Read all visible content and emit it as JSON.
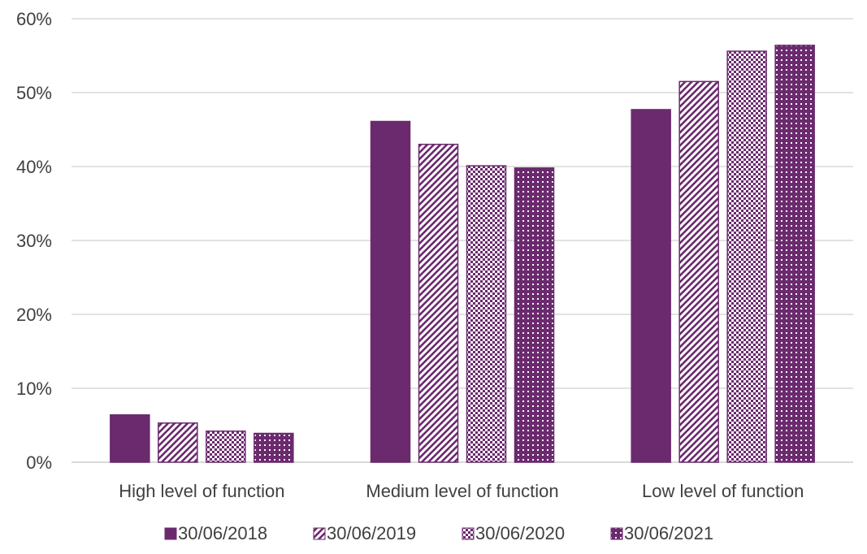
{
  "colors": {
    "primary": "#6b2a6e",
    "grid": "#d9d9d9",
    "axis": "#d9d9d9",
    "text": "#404040",
    "background": "#ffffff"
  },
  "chart_data": {
    "type": "bar",
    "title": "",
    "xlabel": "",
    "ylabel": "",
    "ylim": [
      0,
      60
    ],
    "y_ticks": [
      "0%",
      "10%",
      "20%",
      "30%",
      "40%",
      "50%",
      "60%"
    ],
    "grid": true,
    "legend_position": "bottom",
    "categories": [
      "High level of function",
      "Medium level of function",
      "Low level of function"
    ],
    "series": [
      {
        "name": "30/06/2018",
        "pattern": "solid",
        "values": [
          6.4,
          46.1,
          47.7
        ]
      },
      {
        "name": "30/06/2019",
        "pattern": "diagonal-stripes",
        "values": [
          5.3,
          43.0,
          51.5
        ]
      },
      {
        "name": "30/06/2020",
        "pattern": "checkerboard",
        "values": [
          4.2,
          40.1,
          55.6
        ]
      },
      {
        "name": "30/06/2021",
        "pattern": "dots-grid",
        "values": [
          3.9,
          39.8,
          56.4
        ]
      }
    ]
  }
}
